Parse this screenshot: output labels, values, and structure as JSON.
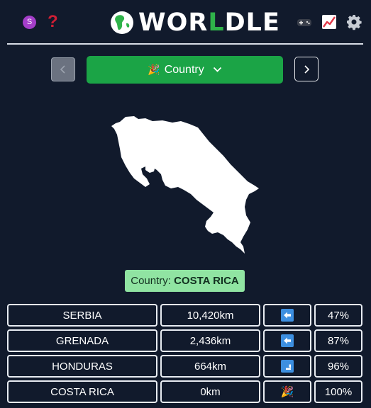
{
  "header": {
    "avatar_letter": "S",
    "help_label": "?",
    "logo_part1": "WOR",
    "logo_highlight": "L",
    "logo_part2": "DLE"
  },
  "mode": {
    "label": "Country",
    "icon": "party-popper-icon"
  },
  "answer": {
    "prefix": "Country: ",
    "country": "COSTA RICA"
  },
  "guesses": [
    {
      "name": "SERBIA",
      "distance": "10,420km",
      "direction": "left-arrow",
      "percent": "47%"
    },
    {
      "name": "GRENADA",
      "distance": "2,436km",
      "direction": "left-arrow",
      "percent": "87%"
    },
    {
      "name": "HONDURAS",
      "distance": "664km",
      "direction": "down-right-arrow",
      "percent": "96%"
    },
    {
      "name": "COSTA RICA",
      "distance": "0km",
      "direction": "party-popper",
      "percent": "100%"
    }
  ],
  "colors": {
    "background": "#111a2c",
    "accent_green": "#1ba446",
    "answer_bg": "#90e4a2",
    "arrow_blue": "#3d8fe0"
  }
}
